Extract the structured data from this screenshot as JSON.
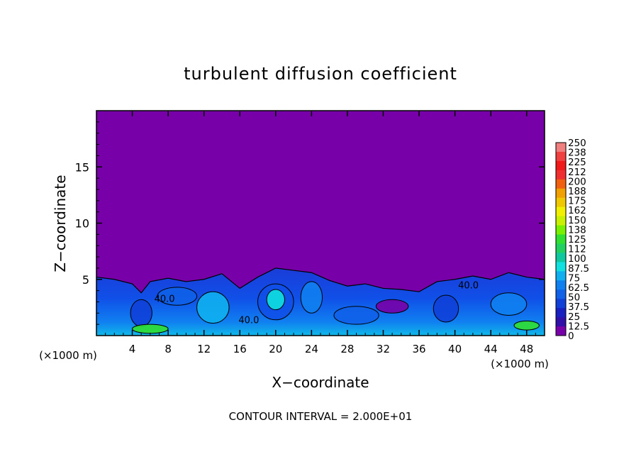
{
  "chart_data": {
    "type": "heatmap",
    "title": "turbulent diffusion coefficient",
    "xlabel": "X−coordinate",
    "ylabel": "Z−coordinate",
    "x_unit_left": "(×1000 m)",
    "x_unit_right": "(×1000 m)",
    "footer": "CONTOUR INTERVAL = 2.000E+01",
    "xlim": [
      0,
      50
    ],
    "ylim": [
      0,
      20
    ],
    "x_ticks": [
      "4",
      "8",
      "12",
      "16",
      "20",
      "24",
      "28",
      "32",
      "36",
      "40",
      "44",
      "48"
    ],
    "x_tick_values": [
      4,
      8,
      12,
      16,
      20,
      24,
      28,
      32,
      36,
      40,
      44,
      48
    ],
    "y_ticks": [
      "5",
      "10",
      "15"
    ],
    "y_tick_values": [
      5,
      10,
      15
    ],
    "contour_labels": [
      {
        "text": "40.0",
        "x": 7.6,
        "z": 3.0
      },
      {
        "text": "40.0",
        "x": 17.0,
        "z": 1.1
      },
      {
        "text": "40.0",
        "x": 41.5,
        "z": 4.2
      }
    ],
    "colorbar": {
      "labels": [
        "250",
        "238",
        "225",
        "212",
        "200",
        "188",
        "175",
        "162",
        "150",
        "138",
        "125",
        "112",
        "100",
        "87.5",
        "75",
        "62.5",
        "50",
        "37.5",
        "25",
        "12.5",
        "0"
      ],
      "colors": [
        "#f08080",
        "#f04040",
        "#f01818",
        "#f03030",
        "#f06010",
        "#f0a000",
        "#f0c800",
        "#f0f000",
        "#c8f000",
        "#78f000",
        "#30e030",
        "#20d060",
        "#10c8a0",
        "#10e0e0",
        "#10b0f0",
        "#1080f0",
        "#1060e8",
        "#1040d8",
        "#1820c0",
        "#3010a8",
        "#7800a8"
      ]
    },
    "boundary_layer_top": [
      [
        0,
        5.2
      ],
      [
        2,
        5.0
      ],
      [
        4,
        4.6
      ],
      [
        5,
        3.8
      ],
      [
        6,
        4.8
      ],
      [
        8,
        5.1
      ],
      [
        10,
        4.8
      ],
      [
        12,
        5.0
      ],
      [
        14,
        5.5
      ],
      [
        16,
        4.2
      ],
      [
        18,
        5.2
      ],
      [
        20,
        6.0
      ],
      [
        22,
        5.8
      ],
      [
        24,
        5.6
      ],
      [
        26,
        4.9
      ],
      [
        28,
        4.4
      ],
      [
        30,
        4.6
      ],
      [
        32,
        4.2
      ],
      [
        34,
        4.1
      ],
      [
        36,
        3.9
      ],
      [
        38,
        4.8
      ],
      [
        40,
        5.0
      ],
      [
        42,
        5.3
      ],
      [
        44,
        5.0
      ],
      [
        46,
        5.6
      ],
      [
        48,
        5.2
      ],
      [
        50,
        5.0
      ]
    ],
    "background_value": 0
  }
}
